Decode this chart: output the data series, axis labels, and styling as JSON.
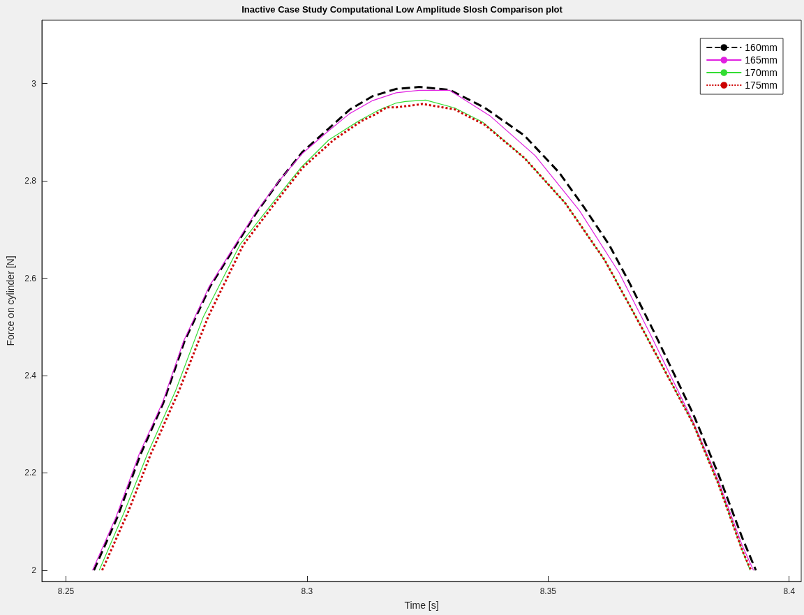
{
  "chart_data": {
    "type": "line",
    "title": "Inactive Case Study Computational Low Amplitude Slosh Comparison plot",
    "xlabel": "Time [s]",
    "ylabel": "Force on cylinder [N]",
    "xlim": [
      8.245,
      8.4025
    ],
    "xticks": [
      8.25,
      8.3,
      8.35,
      8.4
    ],
    "ylim": [
      1.977,
      3.13
    ],
    "yticks": [
      2,
      2.2,
      2.4,
      2.6,
      2.8,
      3
    ],
    "grid": false,
    "legend": "top right",
    "marker": "none",
    "series": [
      {
        "name": "160mm",
        "color": "#000000",
        "line_style": "dashed",
        "x": [
          8.2558,
          8.2607,
          8.2655,
          8.2702,
          8.2746,
          8.2799,
          8.2847,
          8.2896,
          8.2944,
          8.2991,
          8.304,
          8.3088,
          8.3136,
          8.3185,
          8.3233,
          8.3296,
          8.3369,
          8.3451,
          8.3523,
          8.3575,
          8.3627,
          8.3668,
          8.372,
          8.3801,
          8.3853,
          8.3903,
          8.3931
        ],
        "values": [
          2.0,
          2.11,
          2.239,
          2.344,
          2.471,
          2.583,
          2.659,
          2.736,
          2.802,
          2.86,
          2.903,
          2.946,
          2.974,
          2.989,
          2.993,
          2.987,
          2.95,
          2.893,
          2.817,
          2.745,
          2.668,
          2.592,
          2.489,
          2.321,
          2.198,
          2.066,
          2.0
        ]
      },
      {
        "name": "165mm",
        "color": "#e020e0",
        "line_style": "solid",
        "x": [
          8.2555,
          8.2604,
          8.2652,
          8.27,
          8.2744,
          8.2797,
          8.2845,
          8.2894,
          8.2942,
          8.299,
          8.3039,
          8.3088,
          8.3136,
          8.3185,
          8.3233,
          8.3296,
          8.3379,
          8.3473,
          8.3565,
          8.3647,
          8.371,
          8.3801,
          8.3853,
          8.3903,
          8.3926
        ],
        "values": [
          2.0,
          2.11,
          2.239,
          2.344,
          2.471,
          2.583,
          2.659,
          2.736,
          2.8,
          2.856,
          2.898,
          2.938,
          2.965,
          2.981,
          2.986,
          2.986,
          2.934,
          2.852,
          2.739,
          2.612,
          2.489,
          2.305,
          2.185,
          2.05,
          2.0
        ]
      },
      {
        "name": "170mm",
        "color": "#33dd33",
        "line_style": "solid",
        "x": [
          8.2569,
          8.2621,
          8.2669,
          8.2727,
          8.2785,
          8.2861,
          8.2929,
          8.2987,
          8.3045,
          8.3107,
          8.315,
          8.3185,
          8.3204,
          8.3246,
          8.3306,
          8.3364,
          8.3451,
          8.3535,
          8.3617,
          8.3694,
          8.3801,
          8.3853,
          8.3903,
          8.3919
        ],
        "values": [
          2.0,
          2.12,
          2.239,
          2.368,
          2.521,
          2.669,
          2.755,
          2.827,
          2.884,
          2.923,
          2.946,
          2.96,
          2.963,
          2.966,
          2.95,
          2.921,
          2.847,
          2.755,
          2.638,
          2.499,
          2.301,
          2.178,
          2.04,
          2.0
        ]
      },
      {
        "name": "175mm",
        "color": "#cc0000",
        "line_style": "dotted",
        "x": [
          8.2575,
          8.2629,
          8.2676,
          8.2734,
          8.2795,
          8.2868,
          8.2934,
          8.2991,
          8.3055,
          8.3113,
          8.3142,
          8.3165,
          8.3185,
          8.3233,
          8.324,
          8.3306,
          8.3369,
          8.3451,
          8.3535,
          8.3617,
          8.3694,
          8.3801,
          8.3853,
          8.3903,
          8.3921
        ],
        "values": [
          2.0,
          2.12,
          2.239,
          2.368,
          2.521,
          2.669,
          2.755,
          2.827,
          2.884,
          2.923,
          2.937,
          2.951,
          2.951,
          2.957,
          2.958,
          2.947,
          2.915,
          2.847,
          2.755,
          2.638,
          2.499,
          2.301,
          2.178,
          2.04,
          2.0
        ]
      }
    ]
  }
}
